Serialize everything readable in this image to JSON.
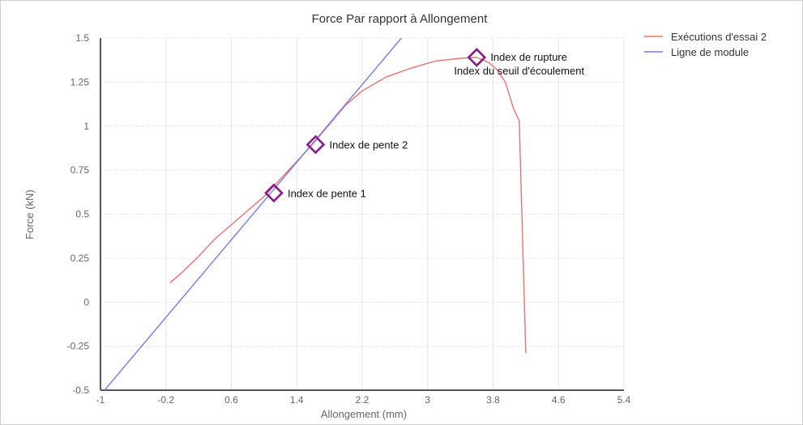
{
  "chart_data": {
    "type": "line",
    "title": "Force Par rapport à Allongement",
    "xlabel": "Allongement (mm)",
    "ylabel": "Force (kN)",
    "xlim": [
      -1,
      5.4
    ],
    "ylim": [
      -0.5,
      1.5
    ],
    "x_ticks": [
      "-1",
      "-0.2",
      "0.6",
      "1.4",
      "2.2",
      "3",
      "3.8",
      "4.6",
      "5.4"
    ],
    "y_ticks": [
      "1.5",
      "1.25",
      "1",
      "0.75",
      "0.5",
      "0.25",
      "0",
      "-0.25",
      "-0.5"
    ],
    "grid": true,
    "legend_position": "top-right",
    "series": [
      {
        "name": "Exécutions d'essai 2",
        "color": "#f07070",
        "points": [
          [
            -0.15,
            0.11
          ],
          [
            0.0,
            0.17
          ],
          [
            0.2,
            0.26
          ],
          [
            0.4,
            0.36
          ],
          [
            0.6,
            0.44
          ],
          [
            0.8,
            0.52
          ],
          [
            1.0,
            0.6
          ],
          [
            1.2,
            0.7
          ],
          [
            1.4,
            0.8
          ],
          [
            1.6,
            0.9
          ],
          [
            1.8,
            1.01
          ],
          [
            2.0,
            1.12
          ],
          [
            2.2,
            1.2
          ],
          [
            2.5,
            1.28
          ],
          [
            2.8,
            1.33
          ],
          [
            3.1,
            1.37
          ],
          [
            3.4,
            1.385
          ],
          [
            3.6,
            1.39
          ],
          [
            3.75,
            1.36
          ],
          [
            3.85,
            1.32
          ],
          [
            3.95,
            1.25
          ],
          [
            4.05,
            1.1
          ],
          [
            4.12,
            1.03
          ],
          [
            4.2,
            -0.29
          ]
        ]
      },
      {
        "name": "Ligne de module",
        "color": "#7878f0",
        "points": [
          [
            -0.95,
            -0.5
          ],
          [
            2.68,
            1.5
          ]
        ]
      }
    ],
    "markers": [
      {
        "label": "Index de pente 1",
        "x": 1.12,
        "y": 0.62
      },
      {
        "label": "Index de pente 2",
        "x": 1.63,
        "y": 0.895
      },
      {
        "label": "Index de rupture",
        "x": 3.6,
        "y": 1.39
      },
      {
        "label": "Index du seuil d'écoulement",
        "x": 3.6,
        "y": 1.39
      }
    ],
    "marker_color": "#8a1a8a"
  }
}
